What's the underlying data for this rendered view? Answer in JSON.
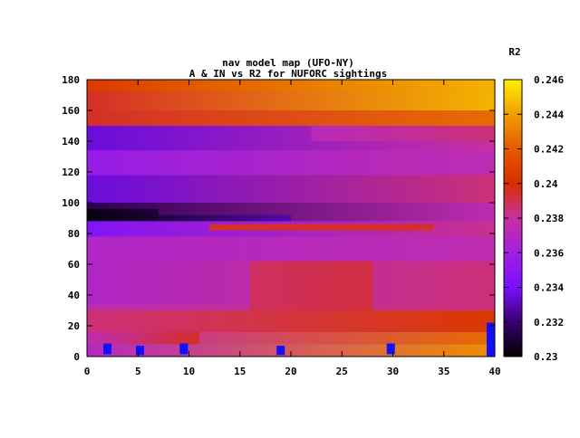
{
  "chart_data": {
    "type": "heatmap",
    "title_line1": "nav model map (UFO-NY)",
    "title_line2": "A & IN vs R2 for NUFORC sightings",
    "colorbar_label": "R2",
    "xlim": [
      0,
      40
    ],
    "ylim": [
      0,
      180
    ],
    "x_ticks": [
      "0",
      "5",
      "10",
      "15",
      "20",
      "25",
      "30",
      "35",
      "40"
    ],
    "y_ticks": [
      "0",
      "20",
      "40",
      "60",
      "80",
      "100",
      "120",
      "140",
      "160",
      "180"
    ],
    "colorbar_range": [
      0.23,
      0.246
    ],
    "colorbar_ticks": [
      "0.23",
      "0.232",
      "0.234",
      "0.236",
      "0.238",
      "0.24",
      "0.242",
      "0.244",
      "0.246"
    ],
    "grid": false,
    "palette": [
      "#000000",
      "#3a0070",
      "#7a10ff",
      "#a020e0",
      "#c830a0",
      "#d82e00",
      "#e45a00",
      "#f0a000",
      "#ffee00"
    ],
    "markers": [
      {
        "x": 2,
        "y": 5,
        "h": 7,
        "color": "#1010ff"
      },
      {
        "x": 5.2,
        "y": 4,
        "h": 6,
        "color": "#1010ff"
      },
      {
        "x": 9.5,
        "y": 5,
        "h": 7,
        "color": "#1010ff"
      },
      {
        "x": 19,
        "y": 4,
        "h": 6,
        "color": "#1010ff"
      },
      {
        "x": 29.8,
        "y": 5,
        "h": 7,
        "color": "#1010ff"
      },
      {
        "x": 39.6,
        "y": 11,
        "h": 22,
        "color": "#1010ff"
      }
    ],
    "bands": [
      {
        "y0": 0,
        "y1": 8,
        "v0": 0.237,
        "v1": 0.2435
      },
      {
        "y0": 8,
        "y1": 16,
        "v0": 0.2375,
        "v1": 0.2425
      },
      {
        "x0": 0,
        "x1": 11,
        "y0": 8,
        "y1": 28,
        "v0": 0.2375,
        "v1": 0.2395
      },
      {
        "y0": 16,
        "y1": 30,
        "v0": 0.2385,
        "v1": 0.2405
      },
      {
        "y0": 30,
        "y1": 34,
        "v0": 0.2375,
        "v1": 0.2385
      },
      {
        "y0": 34,
        "y1": 62,
        "v0": 0.2368,
        "v1": 0.2385
      },
      {
        "x0": 16,
        "x1": 28,
        "y0": 30,
        "y1": 62,
        "v0": 0.2388,
        "v1": 0.2392
      },
      {
        "y0": 62,
        "y1": 78,
        "v0": 0.2368,
        "v1": 0.2375
      },
      {
        "y0": 78,
        "y1": 88,
        "v0": 0.2345,
        "v1": 0.2382
      },
      {
        "x0": 12,
        "x1": 34,
        "y0": 82,
        "y1": 86,
        "v0": 0.2395,
        "v1": 0.2395
      },
      {
        "y0": 88,
        "y1": 100,
        "v0": 0.2315,
        "v1": 0.2375
      },
      {
        "x0": 0,
        "x1": 7,
        "y0": 88,
        "y1": 96,
        "v0": 0.2303,
        "v1": 0.231
      },
      {
        "x0": 7,
        "x1": 20,
        "y0": 88,
        "y1": 92,
        "v0": 0.2312,
        "v1": 0.2328
      },
      {
        "y0": 100,
        "y1": 118,
        "v0": 0.2335,
        "v1": 0.2385
      },
      {
        "y0": 118,
        "y1": 134,
        "v0": 0.2355,
        "v1": 0.2378
      },
      {
        "x0": 33,
        "x1": 40,
        "y0": 118,
        "y1": 134,
        "v0": 0.2372,
        "v1": 0.2375
      },
      {
        "y0": 134,
        "y1": 150,
        "v0": 0.2335,
        "v1": 0.238
      },
      {
        "x0": 22,
        "x1": 40,
        "y0": 140,
        "y1": 150,
        "v0": 0.2372,
        "v1": 0.2385
      },
      {
        "y0": 150,
        "y1": 160,
        "v0": 0.2395,
        "v1": 0.2425
      },
      {
        "y0": 160,
        "y1": 172,
        "v0": 0.2395,
        "v1": 0.2445
      },
      {
        "y0": 172,
        "y1": 180,
        "v0": 0.2405,
        "v1": 0.2445
      }
    ]
  }
}
